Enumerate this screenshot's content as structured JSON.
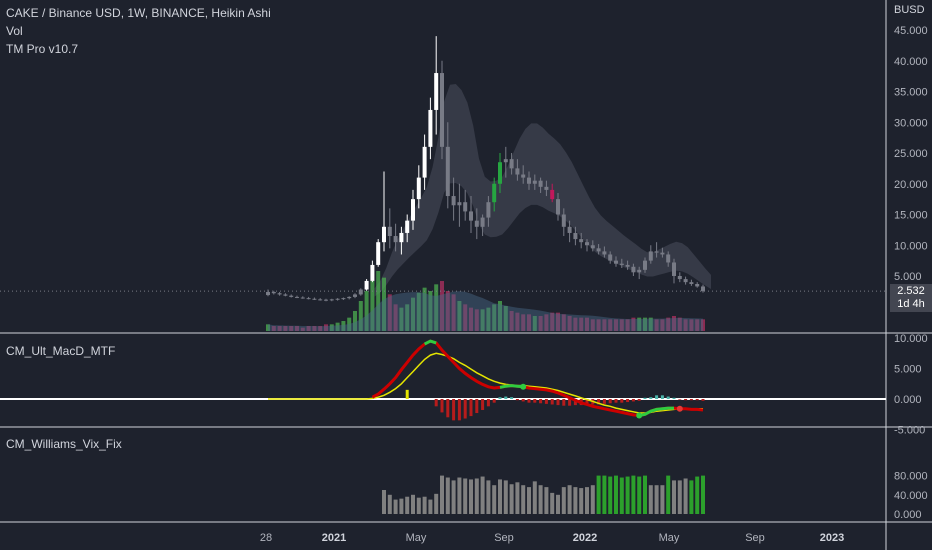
{
  "header": {
    "symbol_line": "CAKE / Binance USD, 1W, BINANCE, Heikin Ashi",
    "indicator_vol": "Vol",
    "indicator_tm": "TM Pro v10.7"
  },
  "price_axis": {
    "currency": "BUSD",
    "ticks": [
      "45.000",
      "40.000",
      "35.000",
      "30.000",
      "25.000",
      "20.000",
      "15.000",
      "10.000",
      "5.000"
    ],
    "tick_values": [
      45,
      40,
      35,
      30,
      25,
      20,
      15,
      10,
      5
    ],
    "last_price": "2.532",
    "countdown": "1d 4h"
  },
  "macd_pane": {
    "title": "CM_Ult_MacD_MTF",
    "ticks": [
      "10.000",
      "5.000",
      "0.000",
      "-5.000"
    ],
    "tick_values": [
      10,
      5,
      0,
      -5
    ]
  },
  "vix_pane": {
    "title": "CM_Williams_Vix_Fix",
    "ticks": [
      "80.000",
      "40.000",
      "0.000"
    ],
    "tick_values": [
      80,
      40,
      0
    ]
  },
  "time_axis": {
    "labels": [
      {
        "text": "28",
        "strong": false
      },
      {
        "text": "2021",
        "strong": true
      },
      {
        "text": "May",
        "strong": false
      },
      {
        "text": "Sep",
        "strong": false
      },
      {
        "text": "2022",
        "strong": true
      },
      {
        "text": "May",
        "strong": false
      },
      {
        "text": "Sep",
        "strong": false
      },
      {
        "text": "2023",
        "strong": true
      }
    ],
    "positions": [
      "2020-12-28",
      "2021-01-01",
      "2021-05-01",
      "2021-09-01",
      "2022-01-01",
      "2022-05-01",
      "2022-09-01",
      "2023-01-01"
    ]
  },
  "colors": {
    "background": "#1e222d",
    "candle_up": "#ffffff",
    "candle_down": "#787b86",
    "candle_green": "#26a641",
    "candle_red": "#c2185b",
    "cloud": "#4a4f5c",
    "vol_up": "#4caf50",
    "vol_down": "#b03060",
    "vol_ma": "#4a6a8a",
    "macd_down": "#cc0000",
    "macd_signal": "#e5e500",
    "macd_cross": "#2ecc40",
    "hist_neg": "#b71c1c",
    "vix_gray": "#808080",
    "vix_green": "#2ca02c"
  },
  "chart_data": {
    "type": "candlestick",
    "start_date": "2020-09-28",
    "interval": "1W",
    "candles_ohlc": [
      [
        1.9,
        2.8,
        1.7,
        2.4
      ],
      [
        2.4,
        2.6,
        2.0,
        2.2
      ],
      [
        2.2,
        2.4,
        1.8,
        2.0
      ],
      [
        2.0,
        2.2,
        1.7,
        1.8
      ],
      [
        1.8,
        2.0,
        1.5,
        1.6
      ],
      [
        1.6,
        1.8,
        1.4,
        1.5
      ],
      [
        1.5,
        1.7,
        1.3,
        1.4
      ],
      [
        1.4,
        1.6,
        1.2,
        1.3
      ],
      [
        1.3,
        1.5,
        1.1,
        1.2
      ],
      [
        1.2,
        1.4,
        1.0,
        1.15
      ],
      [
        1.15,
        1.3,
        0.9,
        1.1
      ],
      [
        1.1,
        1.3,
        0.9,
        1.2
      ],
      [
        1.2,
        1.4,
        1.0,
        1.3
      ],
      [
        1.3,
        1.5,
        1.1,
        1.4
      ],
      [
        1.4,
        1.7,
        1.2,
        1.6
      ],
      [
        1.6,
        2.2,
        1.4,
        2.0
      ],
      [
        2.0,
        3.0,
        1.8,
        2.8
      ],
      [
        2.8,
        4.5,
        2.6,
        4.2
      ],
      [
        4.2,
        7.5,
        4.0,
        6.8
      ],
      [
        6.8,
        11.0,
        6.5,
        10.5
      ],
      [
        10.5,
        22.0,
        9.0,
        13.0
      ],
      [
        13.0,
        16.0,
        9.5,
        11.5
      ],
      [
        11.5,
        13.5,
        9.0,
        10.5
      ],
      [
        10.5,
        13.0,
        8.5,
        12.0
      ],
      [
        12.0,
        15.0,
        10.5,
        14.0
      ],
      [
        14.0,
        19.0,
        12.5,
        17.5
      ],
      [
        17.5,
        23.0,
        16.0,
        21.0
      ],
      [
        21.0,
        28.0,
        19.0,
        26.0
      ],
      [
        26.0,
        34.0,
        24.0,
        32.0
      ],
      [
        32.0,
        44.0,
        28.0,
        38.0
      ],
      [
        38.0,
        40.0,
        24.0,
        26.0
      ],
      [
        26.0,
        30.0,
        16.0,
        18.0
      ],
      [
        18.0,
        21.0,
        14.0,
        16.5
      ],
      [
        16.5,
        20.0,
        13.0,
        17.0
      ],
      [
        17.0,
        19.0,
        14.0,
        15.5
      ],
      [
        15.5,
        18.0,
        12.0,
        14.0
      ],
      [
        14.0,
        16.0,
        11.0,
        13.0
      ],
      [
        13.0,
        15.0,
        11.5,
        14.5
      ],
      [
        14.5,
        18.0,
        13.0,
        17.0
      ],
      [
        17.0,
        21.0,
        15.5,
        20.0
      ],
      [
        20.0,
        25.0,
        18.5,
        23.5
      ],
      [
        23.5,
        26.0,
        21.0,
        24.0
      ],
      [
        24.0,
        25.0,
        21.5,
        22.5
      ],
      [
        22.5,
        24.0,
        20.5,
        21.5
      ],
      [
        21.5,
        23.0,
        20.0,
        21.0
      ],
      [
        21.0,
        22.0,
        19.0,
        20.0
      ],
      [
        20.0,
        21.5,
        19.0,
        20.5
      ],
      [
        20.5,
        21.0,
        18.5,
        19.5
      ],
      [
        19.5,
        20.5,
        18.0,
        19.0
      ],
      [
        19.0,
        20.0,
        17.0,
        17.5
      ],
      [
        17.5,
        18.5,
        14.0,
        15.0
      ],
      [
        15.0,
        16.0,
        11.5,
        13.0
      ],
      [
        13.0,
        14.0,
        10.5,
        12.0
      ],
      [
        12.0,
        13.0,
        10.0,
        11.0
      ],
      [
        11.0,
        12.0,
        9.5,
        10.5
      ],
      [
        10.5,
        11.0,
        9.0,
        10.0
      ],
      [
        10.0,
        10.8,
        9.0,
        9.5
      ],
      [
        9.5,
        10.2,
        8.5,
        9.0
      ],
      [
        9.0,
        9.8,
        8.0,
        8.5
      ],
      [
        8.5,
        9.0,
        7.0,
        7.5
      ],
      [
        7.5,
        8.2,
        6.5,
        7.0
      ],
      [
        7.0,
        7.8,
        6.3,
        6.8
      ],
      [
        6.8,
        7.5,
        6.0,
        6.5
      ],
      [
        6.5,
        7.0,
        5.0,
        5.6
      ],
      [
        5.6,
        6.5,
        4.5,
        6.0
      ],
      [
        6.0,
        8.0,
        5.5,
        7.5
      ],
      [
        7.5,
        10.0,
        7.0,
        9.0
      ],
      [
        9.0,
        10.5,
        8.0,
        8.8
      ],
      [
        8.8,
        9.6,
        8.0,
        8.5
      ],
      [
        8.5,
        9.0,
        6.5,
        7.2
      ],
      [
        7.2,
        7.8,
        3.8,
        5.0
      ],
      [
        5.0,
        5.6,
        4.0,
        4.5
      ],
      [
        4.5,
        4.9,
        3.6,
        4.0
      ],
      [
        4.0,
        4.4,
        3.4,
        3.7
      ],
      [
        3.7,
        4.0,
        3.1,
        3.3
      ],
      [
        3.3,
        3.6,
        2.3,
        2.53
      ]
    ],
    "volume": [
      0.4,
      0.3,
      0.3,
      0.3,
      0.3,
      0.3,
      0.2,
      0.3,
      0.3,
      0.3,
      0.4,
      0.4,
      0.5,
      0.6,
      0.8,
      1.2,
      1.8,
      2.4,
      3.0,
      3.6,
      3.2,
      2.2,
      1.6,
      1.4,
      1.6,
      2.0,
      2.3,
      2.6,
      2.4,
      2.8,
      3.0,
      2.4,
      2.2,
      1.8,
      1.6,
      1.4,
      1.3,
      1.3,
      1.4,
      1.6,
      1.8,
      1.5,
      1.2,
      1.1,
      1.0,
      1.0,
      0.9,
      0.9,
      1.0,
      1.1,
      1.1,
      1.0,
      0.9,
      0.8,
      0.8,
      0.8,
      0.7,
      0.7,
      0.7,
      0.7,
      0.7,
      0.7,
      0.7,
      0.8,
      0.8,
      0.8,
      0.8,
      0.7,
      0.7,
      0.8,
      0.9,
      0.8,
      0.7,
      0.7,
      0.7,
      0.7
    ],
    "macd": [
      0.0,
      0.0,
      0.0,
      0.0,
      0.0,
      0.0,
      0.0,
      0.0,
      0.0,
      0.0,
      0.0,
      0.0,
      0.0,
      0.0,
      0.0,
      0.0,
      0.0,
      0.0,
      0.3,
      0.8,
      1.6,
      2.5,
      3.5,
      4.8,
      6.0,
      7.2,
      8.2,
      9.0,
      9.5,
      9.2,
      8.0,
      7.0,
      6.0,
      5.0,
      4.2,
      3.5,
      2.9,
      2.4,
      2.0,
      1.8,
      1.9,
      2.1,
      2.2,
      2.1,
      2.0,
      1.8,
      1.7,
      1.6,
      1.5,
      1.3,
      1.0,
      0.6,
      0.2,
      -0.2,
      -0.6,
      -0.9,
      -1.2,
      -1.4,
      -1.6,
      -1.8,
      -2.0,
      -2.2,
      -2.4,
      -2.6,
      -2.7,
      -2.5,
      -2.0,
      -1.7,
      -1.6,
      -1.5,
      -1.5,
      -1.6,
      -1.6,
      -1.7,
      -1.7,
      -1.8
    ],
    "macd_signal": [
      0.0,
      0.0,
      0.0,
      0.0,
      0.0,
      0.0,
      0.0,
      0.0,
      0.0,
      0.0,
      0.0,
      0.0,
      0.0,
      0.0,
      0.0,
      0.0,
      0.0,
      0.0,
      0.1,
      0.3,
      0.6,
      1.1,
      1.7,
      2.5,
      3.5,
      4.5,
      5.5,
      6.5,
      7.2,
      7.5,
      7.3,
      7.0,
      6.6,
      6.0,
      5.5,
      4.9,
      4.3,
      3.8,
      3.3,
      2.9,
      2.6,
      2.4,
      2.3,
      2.2,
      2.2,
      2.1,
      2.0,
      1.9,
      1.8,
      1.6,
      1.4,
      1.1,
      0.8,
      0.5,
      0.2,
      -0.1,
      -0.4,
      -0.7,
      -1.0,
      -1.2,
      -1.5,
      -1.7,
      -1.9,
      -2.1,
      -2.3,
      -2.3,
      -2.2,
      -2.0,
      -1.9,
      -1.8,
      -1.7,
      -1.6,
      -1.6,
      -1.6,
      -1.6,
      -1.6
    ],
    "macd_hist": [
      0,
      0,
      0,
      0,
      0,
      0,
      0,
      0,
      0,
      0,
      0,
      0,
      0,
      0,
      0,
      0,
      0,
      0,
      0,
      0,
      0,
      0,
      0,
      0,
      1.5,
      0,
      0,
      0,
      0,
      -1.2,
      -2.2,
      -3.0,
      -3.5,
      -3.5,
      -3.2,
      -2.8,
      -2.3,
      -1.8,
      -1.2,
      -0.6,
      0.3,
      0.4,
      0.3,
      -0.2,
      -0.4,
      -0.6,
      -0.6,
      -0.7,
      -0.8,
      -0.9,
      -1.0,
      -1.1,
      -1.1,
      -1.0,
      -1.0,
      -1.0,
      -0.9,
      -0.9,
      -0.8,
      -0.7,
      -0.6,
      -0.6,
      -0.5,
      -0.4,
      -0.3,
      0.2,
      0.3,
      0.6,
      0.6,
      0.4,
      0.2,
      -0.1,
      -0.2,
      -0.2,
      -0.2,
      -0.3
    ],
    "vix": [
      0,
      0,
      0,
      0,
      0,
      0,
      0,
      0,
      0,
      0,
      0,
      0,
      0,
      0,
      0,
      0,
      0,
      0,
      0,
      0,
      50,
      40,
      30,
      32,
      36,
      40,
      34,
      36,
      30,
      42,
      80,
      76,
      70,
      76,
      74,
      72,
      74,
      78,
      70,
      60,
      72,
      70,
      62,
      66,
      60,
      56,
      68,
      60,
      56,
      44,
      40,
      56,
      60,
      56,
      54,
      56,
      60,
      80,
      80,
      78,
      80,
      76,
      78,
      80,
      78,
      80,
      60,
      60,
      60,
      80,
      70,
      70,
      74,
      70,
      78,
      80
    ],
    "vix_green_from": [
      57,
      58,
      59,
      60,
      61,
      62,
      63,
      64,
      65,
      69,
      73,
      74,
      75
    ]
  }
}
